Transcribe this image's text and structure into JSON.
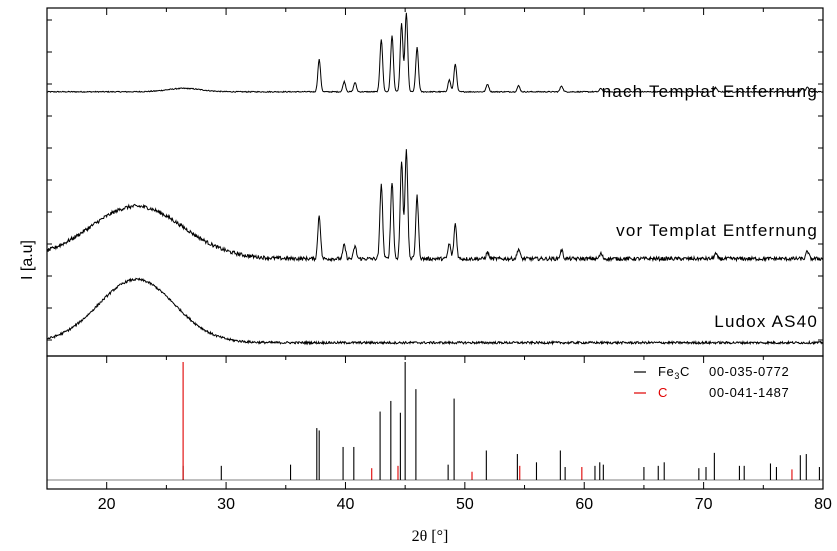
{
  "chart_data": {
    "type": "line",
    "title": "",
    "xlabel": "2θ [°]",
    "ylabel": "I [a.u]",
    "xlim": [
      15,
      80
    ],
    "x_ticks": [
      20,
      30,
      40,
      50,
      60,
      70,
      80
    ],
    "grid": false,
    "panels": [
      {
        "name": "upper",
        "traces": [
          {
            "label": "nach Templat Entfernung",
            "color": "#000000",
            "baseline": 0.12,
            "halo": [
              [
                26.5,
                0.04,
                2.0
              ]
            ],
            "peaks": [
              [
                37.8,
                0.38
              ],
              [
                39.9,
                0.12
              ],
              [
                40.8,
                0.11
              ],
              [
                43.0,
                0.62
              ],
              [
                43.9,
                0.66
              ],
              [
                44.7,
                0.8
              ],
              [
                45.1,
                0.93
              ],
              [
                46.0,
                0.52
              ],
              [
                48.7,
                0.14
              ],
              [
                49.2,
                0.33
              ],
              [
                51.9,
                0.09
              ],
              [
                54.5,
                0.07
              ],
              [
                58.1,
                0.07
              ],
              [
                61.4,
                0.04
              ],
              [
                71.0,
                0.05
              ],
              [
                78.3,
                0.04
              ],
              [
                78.7,
                0.06
              ]
            ],
            "noise": 0.012
          },
          {
            "label": "vor Templat Entfernung",
            "color": "#000000",
            "baseline": 0.05,
            "halo": [
              [
                22.5,
                0.42,
                5.5
              ]
            ],
            "peaks": [
              [
                37.8,
                0.35
              ],
              [
                39.9,
                0.11
              ],
              [
                40.8,
                0.1
              ],
              [
                43.0,
                0.6
              ],
              [
                43.9,
                0.62
              ],
              [
                44.7,
                0.78
              ],
              [
                45.1,
                0.88
              ],
              [
                46.0,
                0.5
              ],
              [
                48.7,
                0.12
              ],
              [
                49.2,
                0.28
              ],
              [
                51.9,
                0.05
              ],
              [
                54.5,
                0.08
              ],
              [
                58.1,
                0.07
              ],
              [
                61.4,
                0.04
              ],
              [
                71.0,
                0.04
              ],
              [
                78.7,
                0.06
              ]
            ],
            "noise": 0.03
          },
          {
            "label": "Ludox AS40",
            "color": "#000000",
            "baseline": 0.02,
            "halo": [
              [
                22.5,
                0.55,
                4.5
              ]
            ],
            "peaks": [],
            "noise": 0.02
          }
        ]
      },
      {
        "name": "reference",
        "type": "stick",
        "series": [
          {
            "name": "Fe3C",
            "legend_text": "Fe",
            "legend_sub": "3",
            "legend_suffix": "C",
            "card": "00-035-0772",
            "color": "#000000",
            "x": [
              26.4,
              29.6,
              35.4,
              37.6,
              37.8,
              39.8,
              40.7,
              42.9,
              43.8,
              44.6,
              45.0,
              45.9,
              48.6,
              49.1,
              51.8,
              54.4,
              56.0,
              58.0,
              58.4,
              60.9,
              61.3,
              61.6,
              65.0,
              66.2,
              66.7,
              69.6,
              70.2,
              70.9,
              73.0,
              73.4,
              75.6,
              76.1,
              78.1,
              78.6,
              79.7
            ],
            "y": [
              0.12,
              0.12,
              0.13,
              0.44,
              0.42,
              0.28,
              0.28,
              0.58,
              0.67,
              0.57,
              1.0,
              0.77,
              0.13,
              0.69,
              0.25,
              0.22,
              0.15,
              0.25,
              0.11,
              0.12,
              0.15,
              0.13,
              0.11,
              0.12,
              0.15,
              0.1,
              0.11,
              0.23,
              0.12,
              0.12,
              0.14,
              0.11,
              0.21,
              0.22,
              0.11
            ],
            "ylim": [
              0,
              1.0
            ]
          },
          {
            "name": "C",
            "legend_text": "C",
            "card": "00-041-1487",
            "color": "#e00000",
            "x": [
              26.4,
              42.2,
              44.4,
              50.6,
              54.6,
              59.8,
              77.4
            ],
            "y": [
              1.0,
              0.1,
              0.12,
              0.07,
              0.12,
              0.11,
              0.09
            ],
            "ylim": [
              0,
              1.0
            ]
          }
        ]
      }
    ]
  }
}
